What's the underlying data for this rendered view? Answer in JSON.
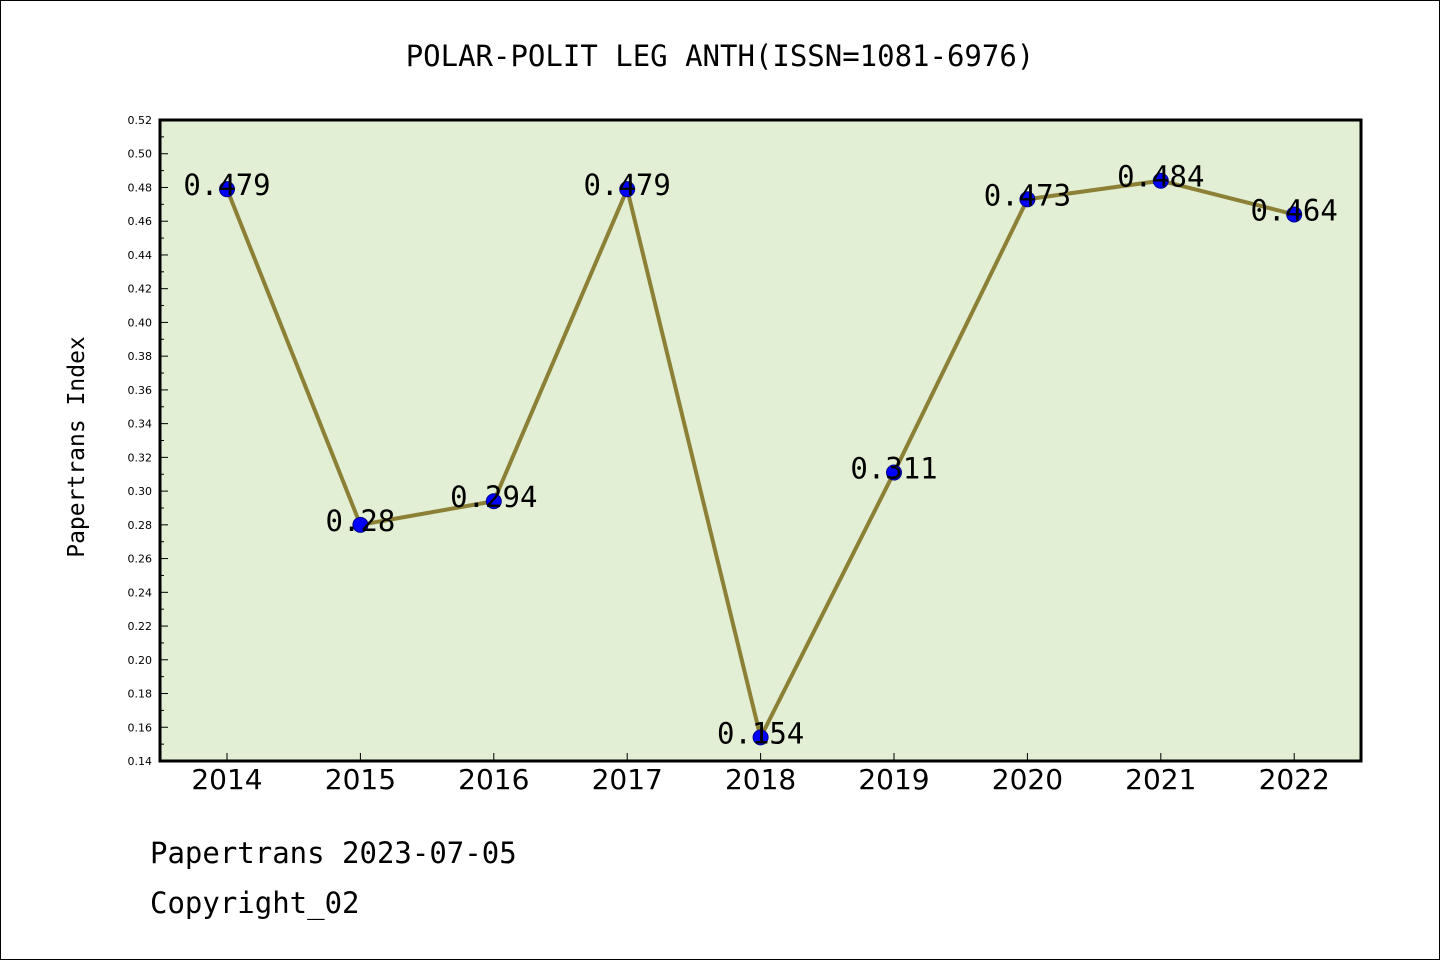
{
  "chart_data": {
    "type": "line",
    "title": "POLAR-POLIT LEG ANTH(ISSN=1081-6976)",
    "xlabel": "",
    "ylabel": "Papertrans Index",
    "categories": [
      "2014",
      "2015",
      "2016",
      "2017",
      "2018",
      "2019",
      "2020",
      "2021",
      "2022"
    ],
    "values": [
      0.479,
      0.28,
      0.294,
      0.479,
      0.154,
      0.311,
      0.473,
      0.484,
      0.464
    ],
    "data_labels": [
      "0.479",
      "0.28",
      "0.294",
      "0.479",
      "0.154",
      "0.311",
      "0.473",
      "0.484",
      "0.464"
    ],
    "ylim": [
      0.14,
      0.52
    ],
    "ytick_step": 0.02,
    "grid": false,
    "legend": "none",
    "colors": {
      "plot_background": "#e2efd4",
      "line": "#8b8036",
      "marker": "#0000ff"
    }
  },
  "footer": {
    "line1": "Papertrans 2023-07-05",
    "line2": "Copyright_02"
  }
}
